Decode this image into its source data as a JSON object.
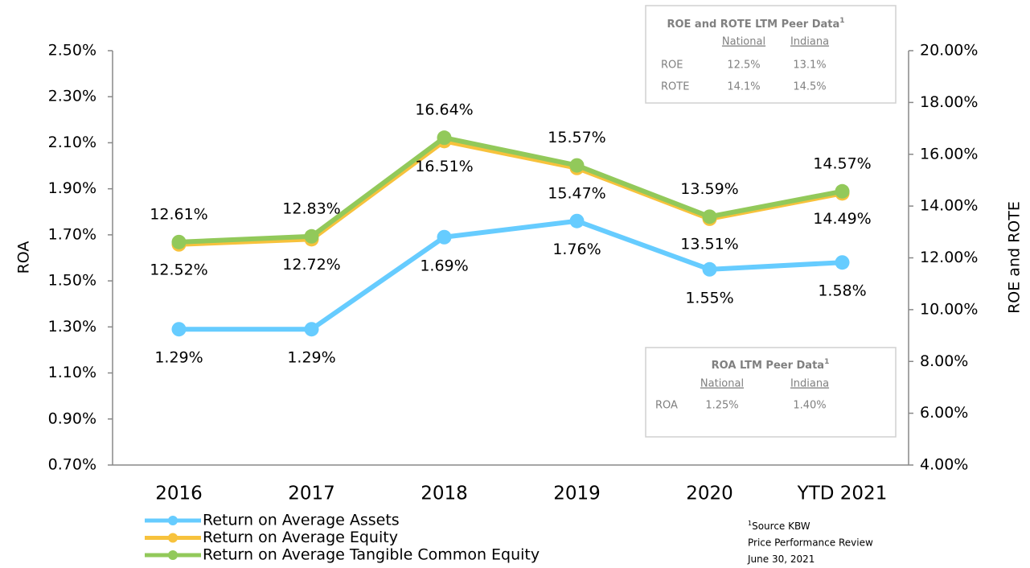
{
  "chart_data": {
    "type": "line",
    "categories": [
      "2016",
      "2017",
      "2018",
      "2019",
      "2020",
      "YTD 2021"
    ],
    "y_label": "ROA",
    "y2_label": "ROE and ROTE",
    "ylim": [
      0.7,
      2.5
    ],
    "yticks": [
      {
        "value": 0.7,
        "label": "0.70%"
      },
      {
        "value": 0.9,
        "label": "0.90%"
      },
      {
        "value": 1.1,
        "label": "1.10%"
      },
      {
        "value": 1.3,
        "label": "1.30%"
      },
      {
        "value": 1.5,
        "label": "1.50%"
      },
      {
        "value": 1.7,
        "label": "1.70%"
      },
      {
        "value": 1.9,
        "label": "1.90%"
      },
      {
        "value": 2.1,
        "label": "2.10%"
      },
      {
        "value": 2.3,
        "label": "2.30%"
      },
      {
        "value": 2.5,
        "label": "2.50%"
      }
    ],
    "y2lim": [
      4,
      20
    ],
    "y2ticks": [
      {
        "value": 4,
        "label": "4.00%"
      },
      {
        "value": 6,
        "label": "6.00%"
      },
      {
        "value": 8,
        "label": "8.00%"
      },
      {
        "value": 10,
        "label": "10.00%"
      },
      {
        "value": 12,
        "label": "12.00%"
      },
      {
        "value": 14,
        "label": "14.00%"
      },
      {
        "value": 16,
        "label": "16.00%"
      },
      {
        "value": 18,
        "label": "18.00%"
      },
      {
        "value": 20,
        "label": "20.00%"
      }
    ],
    "series": [
      {
        "name": "Return on Average Assets",
        "color": "#66ccff",
        "values": [
          1.29,
          1.29,
          1.69,
          1.76,
          1.55,
          1.58
        ],
        "value_labels": [
          "1.29%",
          "1.29%",
          "1.69%",
          "1.76%",
          "1.55%",
          "1.58%"
        ]
      },
      {
        "name": "Return on Average Equity",
        "color": "#f7c23c",
        "axis": "y2",
        "values": [
          12.52,
          12.72,
          16.51,
          15.47,
          13.51,
          14.49
        ],
        "value_labels": [
          "12.52%",
          "12.72%",
          "16.51%",
          "15.47%",
          "13.51%",
          "14.49%"
        ]
      },
      {
        "name": "Return on Average Tangible Common Equity",
        "color": "#92c95a",
        "axis": "y2",
        "values": [
          12.61,
          12.83,
          16.64,
          15.57,
          13.59,
          14.57
        ],
        "value_labels": [
          "12.61%",
          "12.83%",
          "16.64%",
          "15.57%",
          "13.59%",
          "14.57%"
        ]
      }
    ]
  },
  "peer_tables": [
    {
      "title": "ROE and ROTE LTM Peer Data",
      "note_mark": "1",
      "columns": [
        "National",
        "Indiana"
      ],
      "rows": [
        [
          "ROE",
          "12.5%",
          "13.1%"
        ],
        [
          "ROTE",
          "14.1%",
          "14.5%"
        ]
      ]
    },
    {
      "title": "ROA LTM Peer Data",
      "note_mark": "1",
      "columns": [
        "National",
        "Indiana"
      ],
      "rows": [
        [
          "ROA",
          "1.25%",
          "1.40%"
        ]
      ]
    }
  ],
  "footnote": {
    "mark": "1",
    "lines": [
      "Source KBW",
      "Price Performance Review",
      "June 30, 2021"
    ]
  }
}
